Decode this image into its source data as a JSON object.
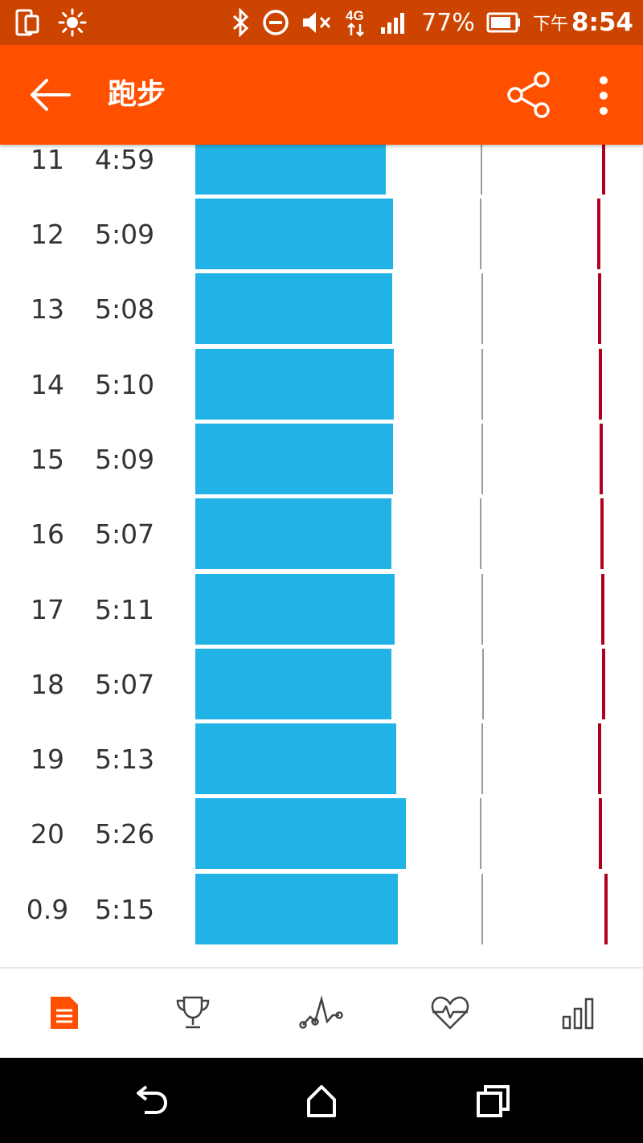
{
  "status_bar": {
    "battery_percent": "77%",
    "time_prefix": "下午",
    "time": "8:54",
    "network": "4G",
    "icons": [
      "dual-screen-icon",
      "brightness-icon",
      "bluetooth-icon",
      "dnd-icon",
      "mute-icon",
      "network-4g-icon",
      "signal-icon",
      "battery-icon"
    ]
  },
  "app_bar": {
    "title": "跑步",
    "back_icon": "back-arrow-icon",
    "share_icon": "share-icon",
    "more_icon": "more-vert-icon",
    "color": "#ff5000"
  },
  "splits": [
    {
      "km": "11",
      "pace": "4:59",
      "pace_seconds": 299
    },
    {
      "km": "12",
      "pace": "5:09",
      "pace_seconds": 309
    },
    {
      "km": "13",
      "pace": "5:08",
      "pace_seconds": 308
    },
    {
      "km": "14",
      "pace": "5:10",
      "pace_seconds": 310
    },
    {
      "km": "15",
      "pace": "5:09",
      "pace_seconds": 309
    },
    {
      "km": "16",
      "pace": "5:07",
      "pace_seconds": 307
    },
    {
      "km": "17",
      "pace": "5:11",
      "pace_seconds": 311
    },
    {
      "km": "18",
      "pace": "5:07",
      "pace_seconds": 307
    },
    {
      "km": "19",
      "pace": "5:13",
      "pace_seconds": 313
    },
    {
      "km": "20",
      "pace": "5:26",
      "pace_seconds": 326
    },
    {
      "km": "0.9",
      "pace": "5:15",
      "pace_seconds": 315
    }
  ],
  "colors": {
    "pace_bar": "#22b3e6",
    "heart_rate_line": "#b0001b",
    "reference_line": "#9a9a9a",
    "active_tab": "#ff5000",
    "inactive_tab": "#444444"
  },
  "tabs": [
    {
      "id": "summary",
      "icon": "document-icon",
      "active": true
    },
    {
      "id": "achievements",
      "icon": "trophy-icon",
      "active": false
    },
    {
      "id": "chart",
      "icon": "line-chart-icon",
      "active": false
    },
    {
      "id": "heart-rate",
      "icon": "heart-rate-icon",
      "active": false
    },
    {
      "id": "splits",
      "icon": "bar-chart-icon",
      "active": false
    }
  ],
  "nav_bar": {
    "icons": [
      "back-nav-icon",
      "home-icon",
      "recents-icon"
    ]
  }
}
